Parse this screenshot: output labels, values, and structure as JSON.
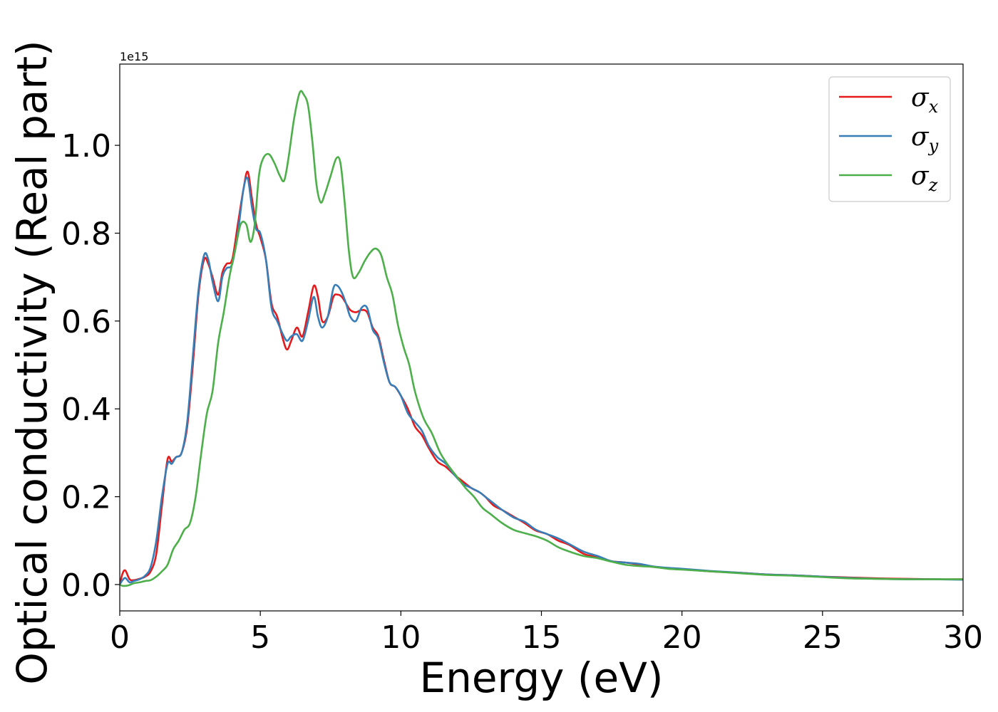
{
  "chart_data": {
    "type": "line",
    "xlabel": "Energy (eV)",
    "ylabel": "Optical conductivity (Real part)",
    "y_offset_label": "1e15",
    "xlim": [
      0,
      30
    ],
    "ylim": [
      -0.06,
      1.185
    ],
    "x_ticks": [
      0,
      5,
      10,
      15,
      20,
      25,
      30
    ],
    "x_tick_labels": [
      "0",
      "5",
      "10",
      "15",
      "20",
      "25",
      "30"
    ],
    "y_ticks": [
      0.0,
      0.2,
      0.4,
      0.6,
      0.8,
      1.0
    ],
    "y_tick_labels": [
      "0.0",
      "0.2",
      "0.4",
      "0.6",
      "0.8",
      "1.0"
    ],
    "grid": false,
    "legend_position": "top-right",
    "series": [
      {
        "name": "σx",
        "symbol": "σ",
        "subscript": "x",
        "color": "#e41a1c",
        "x": [
          0,
          0.1,
          0.2,
          0.35,
          0.5,
          0.7,
          0.9,
          1.1,
          1.3,
          1.5,
          1.7,
          1.85,
          2.0,
          2.2,
          2.4,
          2.6,
          2.8,
          3.0,
          3.15,
          3.3,
          3.5,
          3.65,
          3.8,
          4.0,
          4.2,
          4.4,
          4.55,
          4.7,
          4.85,
          5.0,
          5.2,
          5.4,
          5.6,
          5.8,
          5.95,
          6.1,
          6.3,
          6.5,
          6.7,
          6.9,
          7.05,
          7.2,
          7.4,
          7.6,
          7.75,
          7.9,
          8.05,
          8.2,
          8.4,
          8.6,
          8.8,
          9.0,
          9.2,
          9.4,
          9.6,
          9.8,
          10.0,
          10.25,
          10.5,
          10.75,
          11.0,
          11.3,
          11.6,
          11.9,
          12.2,
          12.5,
          12.8,
          13.0,
          13.3,
          13.6,
          14.0,
          14.4,
          14.8,
          15.2,
          15.6,
          16.0,
          16.5,
          17.0,
          17.5,
          18.0,
          18.5,
          19.0,
          19.5,
          20.0,
          21.0,
          22.0,
          23.0,
          24.0,
          25.0,
          26.0,
          27.0,
          28.0,
          29.0,
          30.0
        ],
        "values": [
          0.0,
          0.025,
          0.032,
          0.012,
          0.01,
          0.013,
          0.018,
          0.03,
          0.07,
          0.18,
          0.285,
          0.28,
          0.29,
          0.3,
          0.36,
          0.5,
          0.66,
          0.74,
          0.73,
          0.7,
          0.66,
          0.71,
          0.73,
          0.74,
          0.82,
          0.9,
          0.94,
          0.88,
          0.82,
          0.79,
          0.74,
          0.64,
          0.61,
          0.56,
          0.535,
          0.555,
          0.585,
          0.565,
          0.62,
          0.68,
          0.655,
          0.6,
          0.61,
          0.655,
          0.66,
          0.655,
          0.64,
          0.625,
          0.62,
          0.625,
          0.62,
          0.585,
          0.565,
          0.51,
          0.46,
          0.45,
          0.43,
          0.4,
          0.36,
          0.34,
          0.31,
          0.28,
          0.268,
          0.25,
          0.235,
          0.22,
          0.21,
          0.2,
          0.18,
          0.17,
          0.155,
          0.14,
          0.123,
          0.115,
          0.1,
          0.09,
          0.07,
          0.062,
          0.053,
          0.05,
          0.045,
          0.04,
          0.037,
          0.035,
          0.03,
          0.027,
          0.023,
          0.021,
          0.018,
          0.016,
          0.014,
          0.013,
          0.012,
          0.012
        ]
      },
      {
        "name": "σy",
        "symbol": "σ",
        "subscript": "y",
        "color": "#377eb8",
        "x": [
          0,
          0.1,
          0.2,
          0.35,
          0.5,
          0.7,
          0.9,
          1.1,
          1.3,
          1.5,
          1.7,
          1.85,
          2.0,
          2.2,
          2.4,
          2.6,
          2.8,
          3.0,
          3.15,
          3.3,
          3.5,
          3.65,
          3.8,
          4.0,
          4.2,
          4.4,
          4.55,
          4.7,
          4.85,
          5.0,
          5.2,
          5.4,
          5.6,
          5.8,
          5.95,
          6.1,
          6.3,
          6.5,
          6.7,
          6.9,
          7.05,
          7.2,
          7.4,
          7.6,
          7.75,
          7.9,
          8.05,
          8.2,
          8.4,
          8.6,
          8.8,
          9.0,
          9.2,
          9.4,
          9.6,
          9.8,
          10.0,
          10.25,
          10.5,
          10.75,
          11.0,
          11.3,
          11.6,
          11.9,
          12.2,
          12.5,
          12.8,
          13.0,
          13.3,
          13.6,
          14.0,
          14.4,
          14.8,
          15.2,
          15.6,
          16.0,
          16.5,
          17.0,
          17.5,
          18.0,
          18.5,
          19.0,
          19.5,
          20.0,
          21.0,
          22.0,
          23.0,
          24.0,
          25.0,
          26.0,
          27.0,
          28.0,
          29.0,
          30.0
        ],
        "values": [
          0.0,
          0.01,
          0.015,
          0.005,
          0.008,
          0.012,
          0.02,
          0.04,
          0.1,
          0.2,
          0.275,
          0.275,
          0.29,
          0.3,
          0.37,
          0.52,
          0.67,
          0.75,
          0.74,
          0.69,
          0.645,
          0.7,
          0.72,
          0.73,
          0.8,
          0.9,
          0.925,
          0.86,
          0.81,
          0.8,
          0.74,
          0.63,
          0.6,
          0.57,
          0.555,
          0.565,
          0.57,
          0.555,
          0.6,
          0.655,
          0.61,
          0.585,
          0.61,
          0.675,
          0.68,
          0.665,
          0.64,
          0.61,
          0.6,
          0.63,
          0.63,
          0.58,
          0.56,
          0.505,
          0.46,
          0.45,
          0.43,
          0.39,
          0.37,
          0.35,
          0.315,
          0.29,
          0.275,
          0.25,
          0.23,
          0.22,
          0.21,
          0.2,
          0.185,
          0.17,
          0.153,
          0.143,
          0.125,
          0.115,
          0.105,
          0.092,
          0.075,
          0.065,
          0.053,
          0.05,
          0.047,
          0.041,
          0.038,
          0.036,
          0.031,
          0.027,
          0.023,
          0.021,
          0.018,
          0.015,
          0.013,
          0.012,
          0.012,
          0.011
        ]
      },
      {
        "name": "σz",
        "symbol": "σ",
        "subscript": "z",
        "color": "#4daf4a",
        "x": [
          0,
          0.1,
          0.3,
          0.5,
          0.7,
          0.9,
          1.1,
          1.3,
          1.5,
          1.7,
          1.9,
          2.1,
          2.3,
          2.5,
          2.7,
          2.9,
          3.1,
          3.3,
          3.5,
          3.7,
          3.9,
          4.1,
          4.3,
          4.5,
          4.65,
          4.8,
          4.95,
          5.1,
          5.3,
          5.5,
          5.7,
          5.85,
          6.0,
          6.2,
          6.4,
          6.55,
          6.7,
          6.85,
          7.0,
          7.15,
          7.3,
          7.5,
          7.7,
          7.85,
          8.0,
          8.15,
          8.3,
          8.5,
          8.7,
          8.9,
          9.1,
          9.3,
          9.5,
          9.7,
          9.9,
          10.1,
          10.3,
          10.5,
          10.8,
          11.1,
          11.4,
          11.7,
          12.0,
          12.3,
          12.6,
          12.9,
          13.2,
          13.6,
          14.0,
          14.4,
          14.8,
          15.2,
          15.6,
          16.0,
          16.5,
          17.0,
          17.5,
          18.0,
          18.5,
          19.0,
          19.5,
          20.0,
          21.0,
          22.0,
          23.0,
          24.0,
          25.0,
          26.0,
          27.0,
          28.0,
          29.0,
          30.0
        ],
        "values": [
          0.0,
          -0.003,
          -0.002,
          0.003,
          0.005,
          0.008,
          0.01,
          0.018,
          0.03,
          0.045,
          0.08,
          0.1,
          0.125,
          0.14,
          0.2,
          0.3,
          0.39,
          0.44,
          0.55,
          0.62,
          0.7,
          0.76,
          0.82,
          0.82,
          0.78,
          0.82,
          0.93,
          0.97,
          0.98,
          0.96,
          0.93,
          0.92,
          0.97,
          1.06,
          1.12,
          1.115,
          1.09,
          1.01,
          0.91,
          0.87,
          0.89,
          0.93,
          0.97,
          0.96,
          0.87,
          0.76,
          0.7,
          0.71,
          0.735,
          0.755,
          0.765,
          0.75,
          0.7,
          0.66,
          0.59,
          0.54,
          0.5,
          0.44,
          0.38,
          0.345,
          0.3,
          0.27,
          0.245,
          0.22,
          0.2,
          0.175,
          0.16,
          0.14,
          0.125,
          0.117,
          0.11,
          0.1,
          0.085,
          0.075,
          0.065,
          0.06,
          0.052,
          0.045,
          0.042,
          0.04,
          0.036,
          0.034,
          0.03,
          0.026,
          0.022,
          0.02,
          0.017,
          0.014,
          0.013,
          0.012,
          0.012,
          0.012
        ]
      }
    ]
  }
}
